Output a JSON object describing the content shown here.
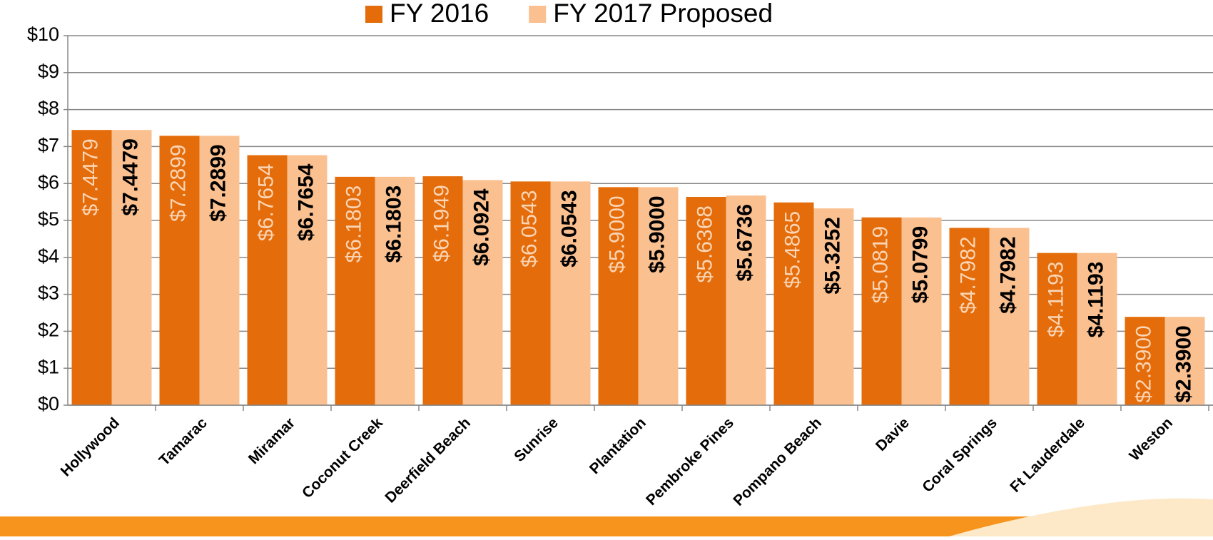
{
  "chart_data": {
    "type": "bar",
    "categories": [
      "Hollywood",
      "Tamarac",
      "Miramar",
      "Coconut Creek",
      "Deerfield Beach",
      "Sunrise",
      "Plantation",
      "Pembroke Pines",
      "Pompano Beach",
      "Davie",
      "Coral Springs",
      "Ft Lauderdale",
      "Weston"
    ],
    "series": [
      {
        "name": "FY 2016",
        "color": "#e46c0a",
        "values": [
          7.4479,
          7.2899,
          6.7654,
          6.1803,
          6.1949,
          6.0543,
          5.9,
          5.6368,
          5.4865,
          5.0819,
          4.7982,
          4.1193,
          2.39
        ],
        "value_labels": [
          "$7.4479",
          "$7.2899",
          "$6.7654",
          "$6.1803",
          "$6.1949",
          "$6.0543",
          "$5.9000",
          "$5.6368",
          "$5.4865",
          "$5.0819",
          "$4.7982",
          "$4.1193",
          "$2.3900"
        ]
      },
      {
        "name": "FY 2017 Proposed",
        "color": "#fac090",
        "values": [
          7.4479,
          7.2899,
          6.7654,
          6.1803,
          6.0924,
          6.0543,
          5.9,
          5.6736,
          5.3252,
          5.0799,
          4.7982,
          4.1193,
          2.39
        ],
        "value_labels": [
          "$7.4479",
          "$7.2899",
          "$6.7654",
          "$6.1803",
          "$6.0924",
          "$6.0543",
          "$5.9000",
          "$5.6736",
          "$5.3252",
          "$5.0799",
          "$4.7982",
          "$4.1193",
          "$2.3900"
        ]
      }
    ],
    "ylim": [
      0,
      10
    ],
    "yticks": [
      {
        "value": 0,
        "label": "$0"
      },
      {
        "value": 1,
        "label": "$1"
      },
      {
        "value": 2,
        "label": "$2"
      },
      {
        "value": 3,
        "label": "$3"
      },
      {
        "value": 4,
        "label": "$4"
      },
      {
        "value": 5,
        "label": "$5"
      },
      {
        "value": 6,
        "label": "$6"
      },
      {
        "value": 7,
        "label": "$7"
      },
      {
        "value": 8,
        "label": "$8"
      },
      {
        "value": 9,
        "label": "$9"
      },
      {
        "value": 10,
        "label": "$10"
      }
    ],
    "grid": true,
    "legend": "top"
  }
}
